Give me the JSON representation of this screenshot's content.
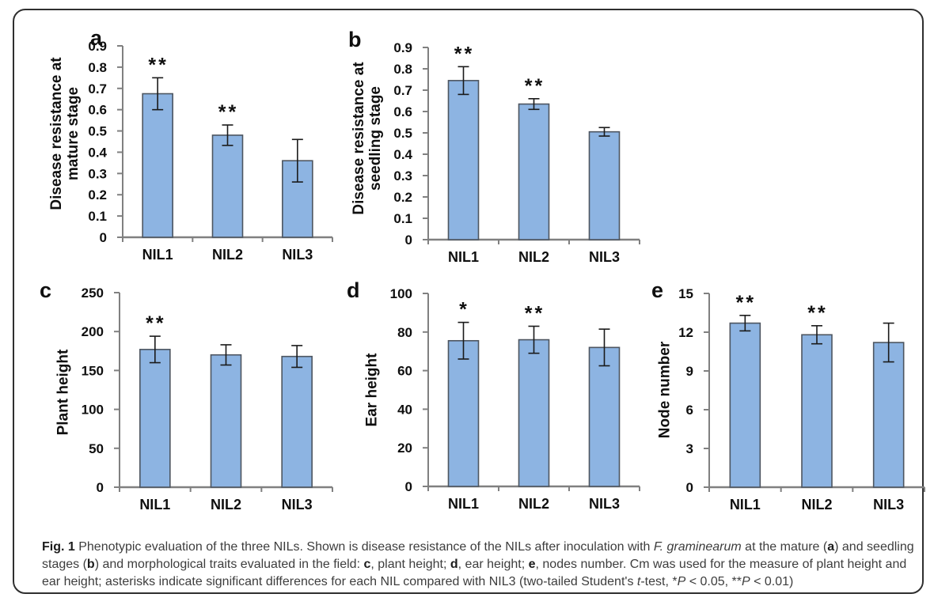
{
  "colors": {
    "bar_fill": "#8DB4E2",
    "bar_stroke": "#4D5560",
    "axis": "#808080",
    "error": "#1a1a1a",
    "text": "#0f0f0f",
    "caption_text": "#3d3d3d",
    "border": "#2f2f2f"
  },
  "chart_data": [
    {
      "id": "a",
      "panel_label": "a",
      "type": "bar",
      "ylabel": "Disease resistance at mature stage",
      "xlabel": "",
      "categories": [
        "NIL1",
        "NIL2",
        "NIL3"
      ],
      "values": [
        0.675,
        0.48,
        0.36
      ],
      "errors": [
        0.075,
        0.048,
        0.1
      ],
      "annotations": [
        "**",
        "**",
        ""
      ],
      "ylim": [
        0,
        0.9
      ],
      "ytick_labels": [
        "0",
        "0.1",
        "0.2",
        "0.3",
        "0.4",
        "0.5",
        "0.6",
        "0.7",
        "0.8",
        "0.9"
      ],
      "grid": false,
      "legend": "none"
    },
    {
      "id": "b",
      "panel_label": "b",
      "type": "bar",
      "ylabel": "Disease resistance at seedling stage",
      "xlabel": "",
      "categories": [
        "NIL1",
        "NIL2",
        "NIL3"
      ],
      "values": [
        0.745,
        0.635,
        0.505
      ],
      "errors": [
        0.065,
        0.025,
        0.02
      ],
      "annotations": [
        "**",
        "**",
        ""
      ],
      "ylim": [
        0,
        0.9
      ],
      "ytick_labels": [
        "0",
        "0.1",
        "0.2",
        "0.3",
        "0.4",
        "0.5",
        "0.6",
        "0.7",
        "0.8",
        "0.9"
      ],
      "grid": false,
      "legend": "none"
    },
    {
      "id": "c",
      "panel_label": "c",
      "type": "bar",
      "ylabel": "Plant height",
      "xlabel": "",
      "categories": [
        "NIL1",
        "NIL2",
        "NIL3"
      ],
      "values": [
        177,
        170,
        168
      ],
      "errors": [
        17,
        13,
        14
      ],
      "annotations": [
        "**",
        "",
        ""
      ],
      "ylim": [
        0,
        250
      ],
      "ytick_labels": [
        "0",
        "50",
        "100",
        "150",
        "200",
        "250"
      ],
      "grid": false,
      "legend": "none"
    },
    {
      "id": "d",
      "panel_label": "d",
      "type": "bar",
      "ylabel": "Ear height",
      "xlabel": "",
      "categories": [
        "NIL1",
        "NIL2",
        "NIL3"
      ],
      "values": [
        75.5,
        76,
        72
      ],
      "errors": [
        9.5,
        7,
        9.5
      ],
      "annotations": [
        "*",
        "**",
        ""
      ],
      "ylim": [
        0,
        100
      ],
      "ytick_labels": [
        "0",
        "20",
        "40",
        "60",
        "80",
        "100"
      ],
      "grid": false,
      "legend": "none"
    },
    {
      "id": "e",
      "panel_label": "e",
      "type": "bar",
      "ylabel": "Node number",
      "xlabel": "",
      "categories": [
        "NIL1",
        "NIL2",
        "NIL3"
      ],
      "values": [
        12.7,
        11.8,
        11.2
      ],
      "errors": [
        0.6,
        0.7,
        1.5
      ],
      "annotations": [
        "**",
        "**",
        ""
      ],
      "ylim": [
        0,
        15
      ],
      "ytick_labels": [
        "0",
        "3",
        "6",
        "9",
        "12",
        "15"
      ],
      "grid": false,
      "legend": "none"
    }
  ],
  "figure": {
    "caption_runs": [
      {
        "t": "Fig. 1",
        "b": true
      },
      {
        "t": " Phenotypic evaluation of the three NILs. Shown is disease resistance of the NILs after inoculation with "
      },
      {
        "t": "F. graminearum",
        "i": true
      },
      {
        "t": " at the mature ("
      },
      {
        "t": "a",
        "b": true
      },
      {
        "t": ") and seedling stages ("
      },
      {
        "t": "b",
        "b": true
      },
      {
        "t": ") and morphological traits evaluated in the field: "
      },
      {
        "t": "c",
        "b": true
      },
      {
        "t": ", plant height; "
      },
      {
        "t": "d",
        "b": true
      },
      {
        "t": ", ear height; "
      },
      {
        "t": "e",
        "b": true
      },
      {
        "t": ", nodes number. Cm was used for the measure of plant height and ear height; asterisks indicate significant differences for each NIL compared with NIL3 (two-tailed Student's "
      },
      {
        "t": "t",
        "i": true
      },
      {
        "t": "-test, *"
      },
      {
        "t": "P",
        "i": true
      },
      {
        "t": " < 0.05, **"
      },
      {
        "t": "P",
        "i": true
      },
      {
        "t": " < 0.01)"
      }
    ]
  }
}
